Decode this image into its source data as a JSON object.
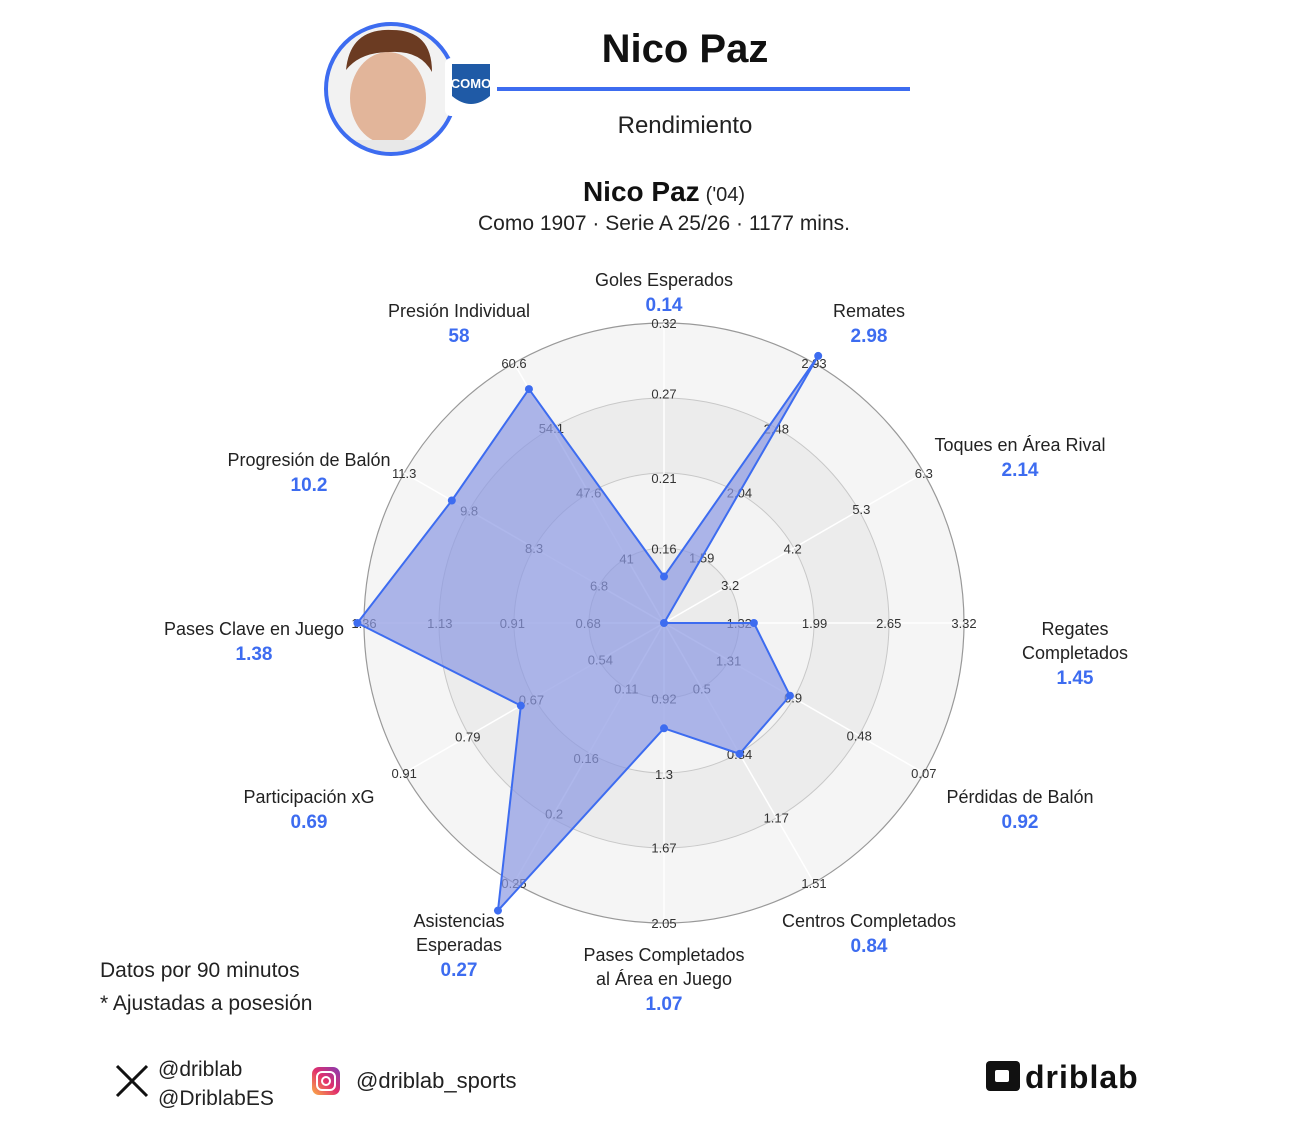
{
  "header": {
    "title": "Nico Paz",
    "subtitle": "Rendimiento"
  },
  "chart_data": {
    "type": "radar",
    "player": "Nico Paz",
    "born": "('04)",
    "info": "Como 1907 · Serie A 25/26 · 1177 mins.",
    "color": "#3d6cf0",
    "fill": "#8c98e3",
    "axes": [
      {
        "label": [
          "Goles Esperados"
        ],
        "value": 0.14,
        "ticks": [
          0.16,
          0.21,
          0.27,
          0.32
        ],
        "lim": [
          0.107,
          0.32
        ]
      },
      {
        "label": [
          "Remates"
        ],
        "value": 2.98,
        "ticks": [
          1.59,
          2.04,
          2.48,
          2.93
        ],
        "lim": [
          1.14,
          2.93
        ]
      },
      {
        "label": [
          "Toques en Área Rival"
        ],
        "value": 2.14,
        "ticks": [
          3.2,
          4.2,
          5.3,
          6.3
        ],
        "lim": [
          2.14,
          6.3
        ]
      },
      {
        "label": [
          "Regates",
          "Completados"
        ],
        "value": 1.45,
        "ticks": [
          1.32,
          1.99,
          2.65,
          3.32
        ],
        "lim": [
          0.65,
          3.32
        ]
      },
      {
        "label": [
          "Pérdidas de Balón"
        ],
        "value": 0.92,
        "ticks": [
          1.31,
          0.9,
          0.48,
          0.07
        ],
        "lim": [
          1.72,
          0.07
        ]
      },
      {
        "label": [
          "Centros Completados"
        ],
        "value": 0.84,
        "ticks": [
          0.5,
          0.84,
          1.17,
          1.51
        ],
        "lim": [
          0.16,
          1.51
        ]
      },
      {
        "label": [
          "Pases Completados",
          "al Área en Juego"
        ],
        "value": 1.07,
        "ticks": [
          0.92,
          1.3,
          1.67,
          2.05
        ],
        "lim": [
          0.54,
          2.05
        ]
      },
      {
        "label": [
          "Asistencias",
          "Esperadas"
        ],
        "value": 0.27,
        "ticks": [
          0.11,
          0.16,
          0.2,
          0.25
        ],
        "lim": [
          0.063,
          0.25
        ]
      },
      {
        "label": [
          "Participación xG"
        ],
        "value": 0.69,
        "ticks": [
          0.54,
          0.67,
          0.79,
          0.91
        ],
        "lim": [
          0.42,
          0.91
        ]
      },
      {
        "label": [
          "Pases Clave en Juego"
        ],
        "value": 1.38,
        "ticks": [
          0.68,
          0.91,
          1.13,
          1.36
        ],
        "lim": [
          0.45,
          1.36
        ]
      },
      {
        "label": [
          "Progresión de Balón"
        ],
        "value": 10.2,
        "ticks": [
          6.8,
          8.3,
          9.8,
          11.3
        ],
        "lim": [
          5.3,
          11.3
        ]
      },
      {
        "label": [
          "Presión Individual"
        ],
        "value": 58,
        "ticks": [
          41,
          47.6,
          54.1,
          60.6
        ],
        "lim": [
          34.5,
          60.6
        ]
      }
    ]
  },
  "notes": [
    "Datos por 90 minutos",
    "* Ajustadas a posesión"
  ],
  "social": {
    "x": [
      "@driblab",
      "@DriblabES"
    ],
    "instagram": "@driblab_sports"
  },
  "logo": "driblab"
}
